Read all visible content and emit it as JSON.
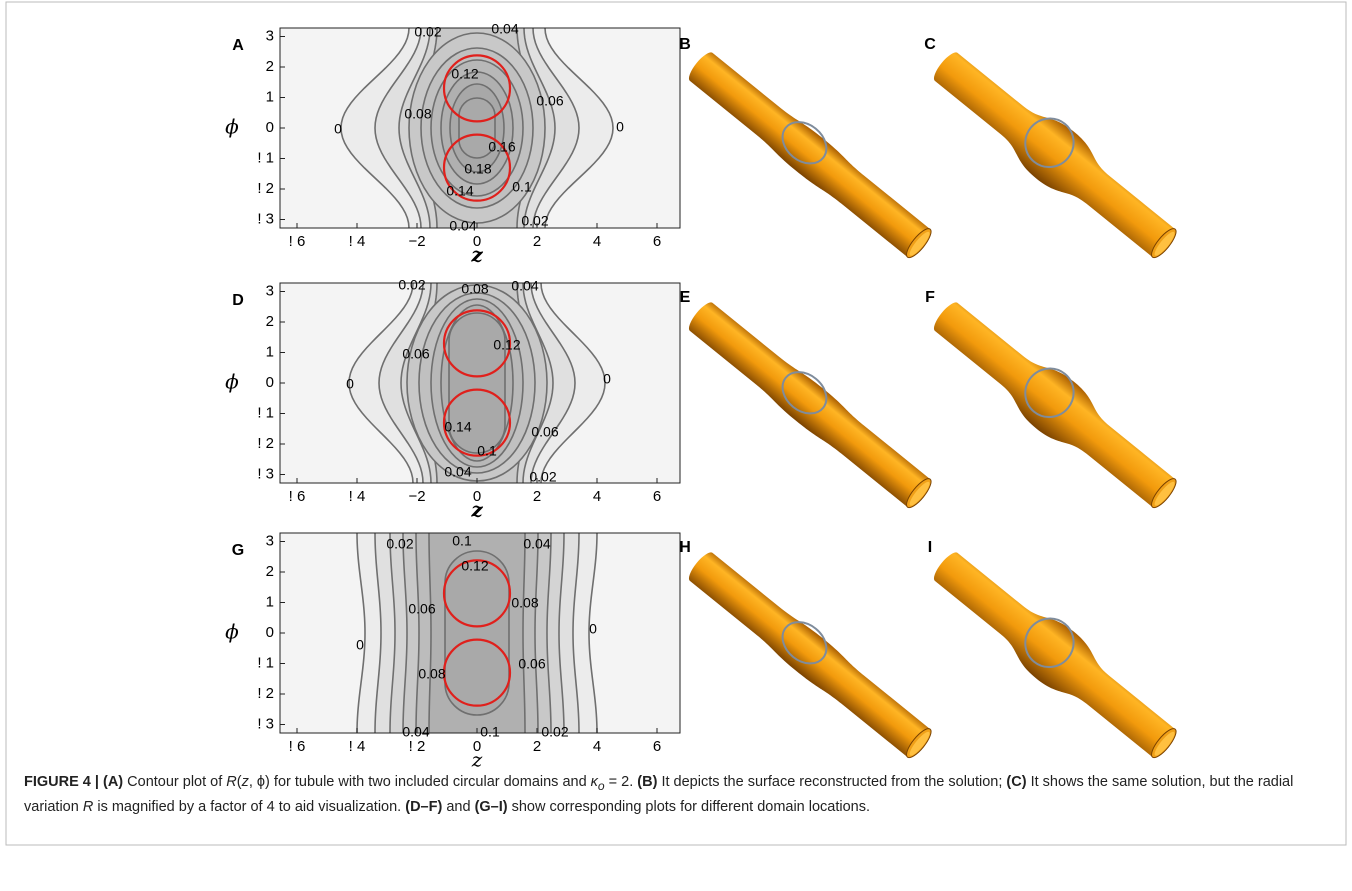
{
  "plots": [
    {
      "label": "A",
      "y_label": "ϕ",
      "x_label": "z",
      "xticks": [
        {
          "value": -6,
          "label": "! 6"
        },
        {
          "value": -4,
          "label": "! 4"
        },
        {
          "value": -2,
          "label": "−2"
        },
        {
          "value": 0,
          "label": "0"
        },
        {
          "value": 2,
          "label": "2"
        },
        {
          "value": 4,
          "label": "4"
        },
        {
          "value": 6,
          "label": "6"
        }
      ],
      "yticks": [
        {
          "value": 3,
          "label": "3"
        },
        {
          "value": 2,
          "label": "2"
        },
        {
          "value": 1,
          "label": "1"
        },
        {
          "value": 0,
          "label": "0"
        },
        {
          "value": -1,
          "label": "! 1"
        },
        {
          "value": -2,
          "label": "! 2"
        },
        {
          "value": -3,
          "label": "! 3"
        }
      ],
      "contour_labels": [
        "0.02",
        "0.04",
        "0.12",
        "0.06",
        "0.08",
        "0.16",
        "0",
        "0",
        "0.18",
        "0.1",
        "0.14",
        "0.04",
        "0.02"
      ]
    },
    {
      "label": "D",
      "y_label": "ϕ",
      "x_label": "z",
      "xticks": [
        {
          "value": -6,
          "label": "! 6"
        },
        {
          "value": -4,
          "label": "! 4"
        },
        {
          "value": -2,
          "label": "−2"
        },
        {
          "value": 0,
          "label": "0"
        },
        {
          "value": 2,
          "label": "2"
        },
        {
          "value": 4,
          "label": "4"
        },
        {
          "value": 6,
          "label": "6"
        }
      ],
      "yticks": [
        {
          "value": 3,
          "label": "3"
        },
        {
          "value": 2,
          "label": "2"
        },
        {
          "value": 1,
          "label": "1"
        },
        {
          "value": 0,
          "label": "0"
        },
        {
          "value": -1,
          "label": "! 1"
        },
        {
          "value": -2,
          "label": "! 2"
        },
        {
          "value": -3,
          "label": "! 3"
        }
      ],
      "contour_labels": [
        "0.02",
        "0.08",
        "0.04",
        "0.12",
        "0.06",
        "0",
        "0",
        "0.14",
        "0.06",
        "0.1",
        "0.04",
        "0.02"
      ]
    },
    {
      "label": "G",
      "y_label": "ϕ",
      "x_label": "z",
      "xticks": [
        {
          "value": -6,
          "label": "! 6"
        },
        {
          "value": -4,
          "label": "! 4"
        },
        {
          "value": -2,
          "label": "! 2"
        },
        {
          "value": 0,
          "label": "0"
        },
        {
          "value": 2,
          "label": "2"
        },
        {
          "value": 4,
          "label": "4"
        },
        {
          "value": 6,
          "label": "6"
        }
      ],
      "yticks": [
        {
          "value": 3,
          "label": "3"
        },
        {
          "value": 2,
          "label": "2"
        },
        {
          "value": 1,
          "label": "1"
        },
        {
          "value": 0,
          "label": "0"
        },
        {
          "value": -1,
          "label": "! 1"
        },
        {
          "value": -2,
          "label": "! 2"
        },
        {
          "value": -3,
          "label": "! 3"
        }
      ],
      "contour_labels": [
        "0.02",
        "0.1",
        "0.04",
        "0.12",
        "0.08",
        "0.06",
        "0",
        "0",
        "0.06",
        "0.08",
        "0.04",
        "0.1",
        "0.02"
      ]
    }
  ],
  "surfaces": [
    "B",
    "C",
    "E",
    "F",
    "H",
    "I"
  ],
  "caption": [
    "FIGURE 4 | (A)",
    " Contour plot of ",
    "R",
    "(",
    "z",
    ", ϕ)",
    " for tubule with two included circular domains and ",
    "κ",
    "o",
    " = 2. ",
    "(B)",
    " It depicts the surface reconstructed from the solution; ",
    "(C)",
    " It shows the same solution, but the radial variation ",
    "R",
    " is magnified by a factor of 4 to aid visualization. ",
    "(D–F)",
    " and ",
    "(G–I)",
    " show corresponding plots for different domain locations."
  ]
}
